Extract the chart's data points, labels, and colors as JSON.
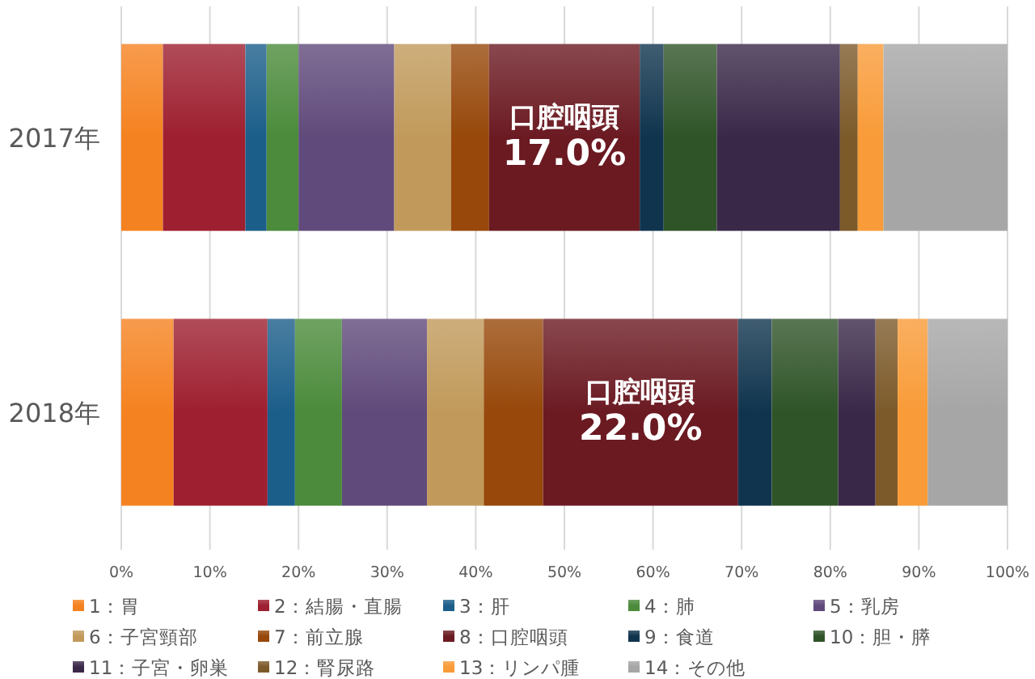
{
  "chart_data": {
    "type": "bar",
    "orientation": "horizontal",
    "stacked": true,
    "categories": [
      "2017年",
      "2018年"
    ],
    "series": [
      {
        "name": "1：胃",
        "color": "#f58220",
        "values": [
          4.7,
          5.9
        ]
      },
      {
        "name": "2：結腸・直腸",
        "color": "#9e1f2f",
        "values": [
          9.3,
          10.6
        ]
      },
      {
        "name": "3：肝",
        "color": "#1b5e8a",
        "values": [
          2.4,
          3.1
        ]
      },
      {
        "name": "4：肺",
        "color": "#4b8b3b",
        "values": [
          3.6,
          5.3
        ]
      },
      {
        "name": "5：乳房",
        "color": "#604a7b",
        "values": [
          10.8,
          9.6
        ]
      },
      {
        "name": "6：子宮頸部",
        "color": "#c19a5b",
        "values": [
          6.4,
          6.4
        ]
      },
      {
        "name": "7：前立腺",
        "color": "#97480a",
        "values": [
          4.3,
          6.7
        ]
      },
      {
        "name": "8：口腔咽頭",
        "color": "#6b1a22",
        "values": [
          17.0,
          22.0
        ],
        "value_labels": [
          "口腔咽頭\n17.0%",
          "口腔咽頭\n22.0%"
        ]
      },
      {
        "name": "9：食道",
        "color": "#10344e",
        "values": [
          2.7,
          3.8
        ]
      },
      {
        "name": "10：胆・膵",
        "color": "#2f5428",
        "values": [
          6.0,
          7.5
        ]
      },
      {
        "name": "11：子宮・卵巣",
        "color": "#3a2848",
        "values": [
          13.9,
          4.2
        ]
      },
      {
        "name": "12：腎尿路",
        "color": "#7c5a2a",
        "values": [
          2.0,
          2.5
        ]
      },
      {
        "name": "13：リンパ腫",
        "color": "#f99b38",
        "values": [
          2.9,
          3.4
        ]
      },
      {
        "name": "14：その他",
        "color": "#a6a6a6",
        "values": [
          14.0,
          9.0
        ]
      }
    ],
    "xlim": [
      0,
      100
    ],
    "xticks": [
      {
        "value": 0,
        "label": "0%"
      },
      {
        "value": 10,
        "label": "10%"
      },
      {
        "value": 20,
        "label": "20%"
      },
      {
        "value": 30,
        "label": "30%"
      },
      {
        "value": 40,
        "label": "40%"
      },
      {
        "value": 50,
        "label": "50%"
      },
      {
        "value": 60,
        "label": "60%"
      },
      {
        "value": 70,
        "label": "70%"
      },
      {
        "value": 80,
        "label": "80%"
      },
      {
        "value": 90,
        "label": "90%"
      },
      {
        "value": 100,
        "label": "100%"
      }
    ],
    "grid": "x",
    "legend": "bottom"
  }
}
